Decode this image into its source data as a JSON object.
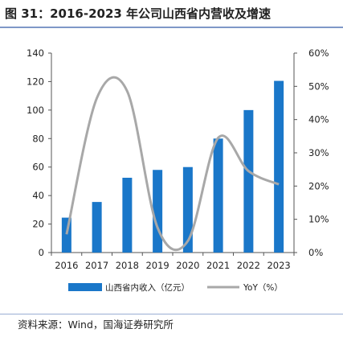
{
  "title": "图 31：2016-2023 年公司山西省内营收及增速",
  "source": "资料来源：Wind，国海证券研究所",
  "colors": {
    "bar": "#1a77c9",
    "line": "#a8a8a8",
    "axis": "#555555",
    "rule": "#7f98c8"
  },
  "chart_data": {
    "type": "bar",
    "categories": [
      "2016",
      "2017",
      "2018",
      "2019",
      "2020",
      "2021",
      "2022",
      "2023"
    ],
    "series": [
      {
        "name": "山西省内收入（亿元）",
        "type": "bar",
        "axis": "left",
        "values": [
          24.5,
          35.5,
          52.5,
          58,
          60,
          80,
          100,
          120.5
        ]
      },
      {
        "name": "YoY（%）",
        "type": "line",
        "axis": "right",
        "smooth": true,
        "values": [
          5.5,
          46.5,
          48.5,
          7.5,
          3.5,
          34.5,
          24.5,
          20.5
        ]
      }
    ],
    "y_left": {
      "ylim": [
        0,
        140
      ],
      "ticks": [
        "0",
        "20",
        "40",
        "60",
        "80",
        "100",
        "120",
        "140"
      ]
    },
    "y_right": {
      "ylim": [
        0,
        60
      ],
      "ticks": [
        "0%",
        "10%",
        "20%",
        "30%",
        "40%",
        "50%",
        "60%"
      ]
    },
    "legend": "bottom-center",
    "grid": false
  }
}
